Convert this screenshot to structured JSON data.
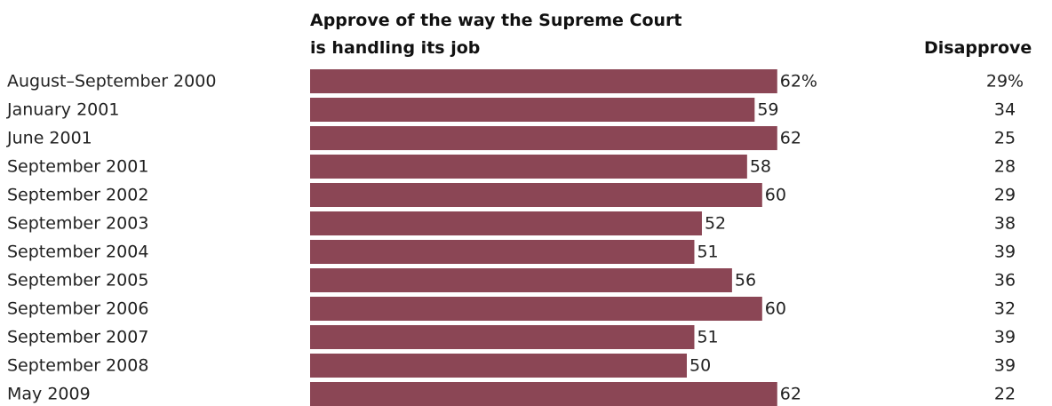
{
  "chart_data": {
    "type": "bar",
    "orientation": "horizontal",
    "title_lines": [
      "Approve of the way the Supreme Court",
      "is handling its job"
    ],
    "disapprove_header": "Disapprove",
    "categories": [
      "August–September 2000",
      "January 2001",
      "June 2001",
      "September 2001",
      "September 2002",
      "September 2003",
      "September 2004",
      "September 2005",
      "September 2006",
      "September 2007",
      "September 2008",
      "May 2009"
    ],
    "series": [
      {
        "values": [
          62,
          59,
          62,
          58,
          60,
          52,
          51,
          56,
          60,
          51,
          50,
          62
        ],
        "labels": [
          "62%",
          "59",
          "62",
          "58",
          "60",
          "52",
          "51",
          "56",
          "60",
          "51",
          "50",
          "62"
        ]
      },
      {
        "values": [
          29,
          34,
          25,
          28,
          29,
          38,
          39,
          36,
          32,
          39,
          39,
          22
        ],
        "labels": [
          "29%",
          "34",
          "25",
          "28",
          "29",
          "38",
          "39",
          "36",
          "32",
          "39",
          "39",
          "22"
        ]
      }
    ],
    "xlim": [
      0,
      100
    ],
    "colors": {
      "bar": "#8b4655"
    }
  }
}
